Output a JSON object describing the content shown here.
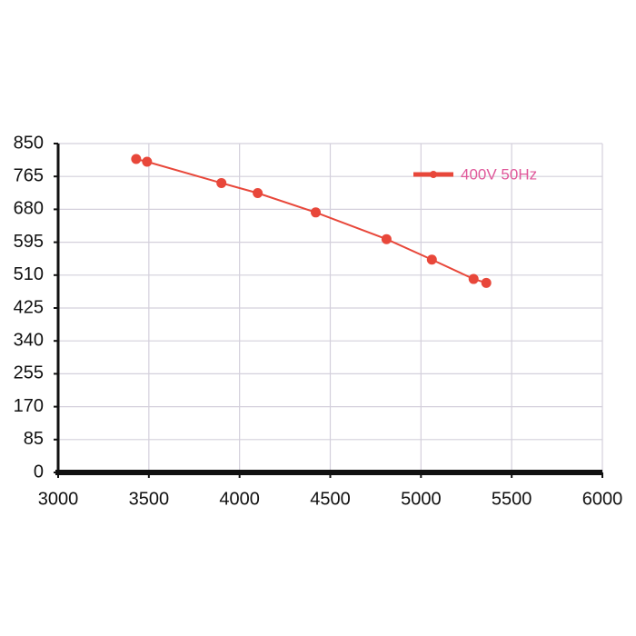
{
  "chart_data": {
    "type": "line",
    "x": [
      3430,
      3490,
      3900,
      4100,
      4420,
      4810,
      5060,
      5290,
      5360
    ],
    "series": [
      {
        "name": "400V 50Hz",
        "color": "#e8473a",
        "values": [
          810,
          803,
          748,
          722,
          672,
          603,
          550,
          500,
          490
        ]
      }
    ],
    "xlim": [
      3000,
      6000
    ],
    "xticks": [
      3000,
      3500,
      4000,
      4500,
      5000,
      5500,
      6000
    ],
    "ylim": [
      0,
      850
    ],
    "yticks": [
      0,
      85,
      170,
      255,
      340,
      425,
      510,
      595,
      680,
      765,
      850
    ],
    "grid": true,
    "legend": "top-right"
  }
}
